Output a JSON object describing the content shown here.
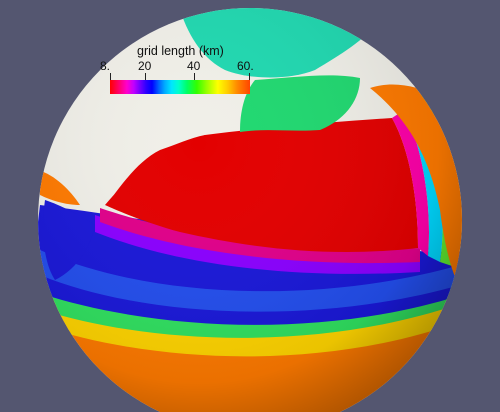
{
  "legend": {
    "title": "grid length (km)",
    "tick_labels": [
      "8.",
      "20",
      "40",
      "60."
    ]
  },
  "colors": {
    "background": "#545670",
    "land": "#f0efe8",
    "fine_resolution": "#e00000",
    "coarse_resolution": "#ff6a00"
  }
}
